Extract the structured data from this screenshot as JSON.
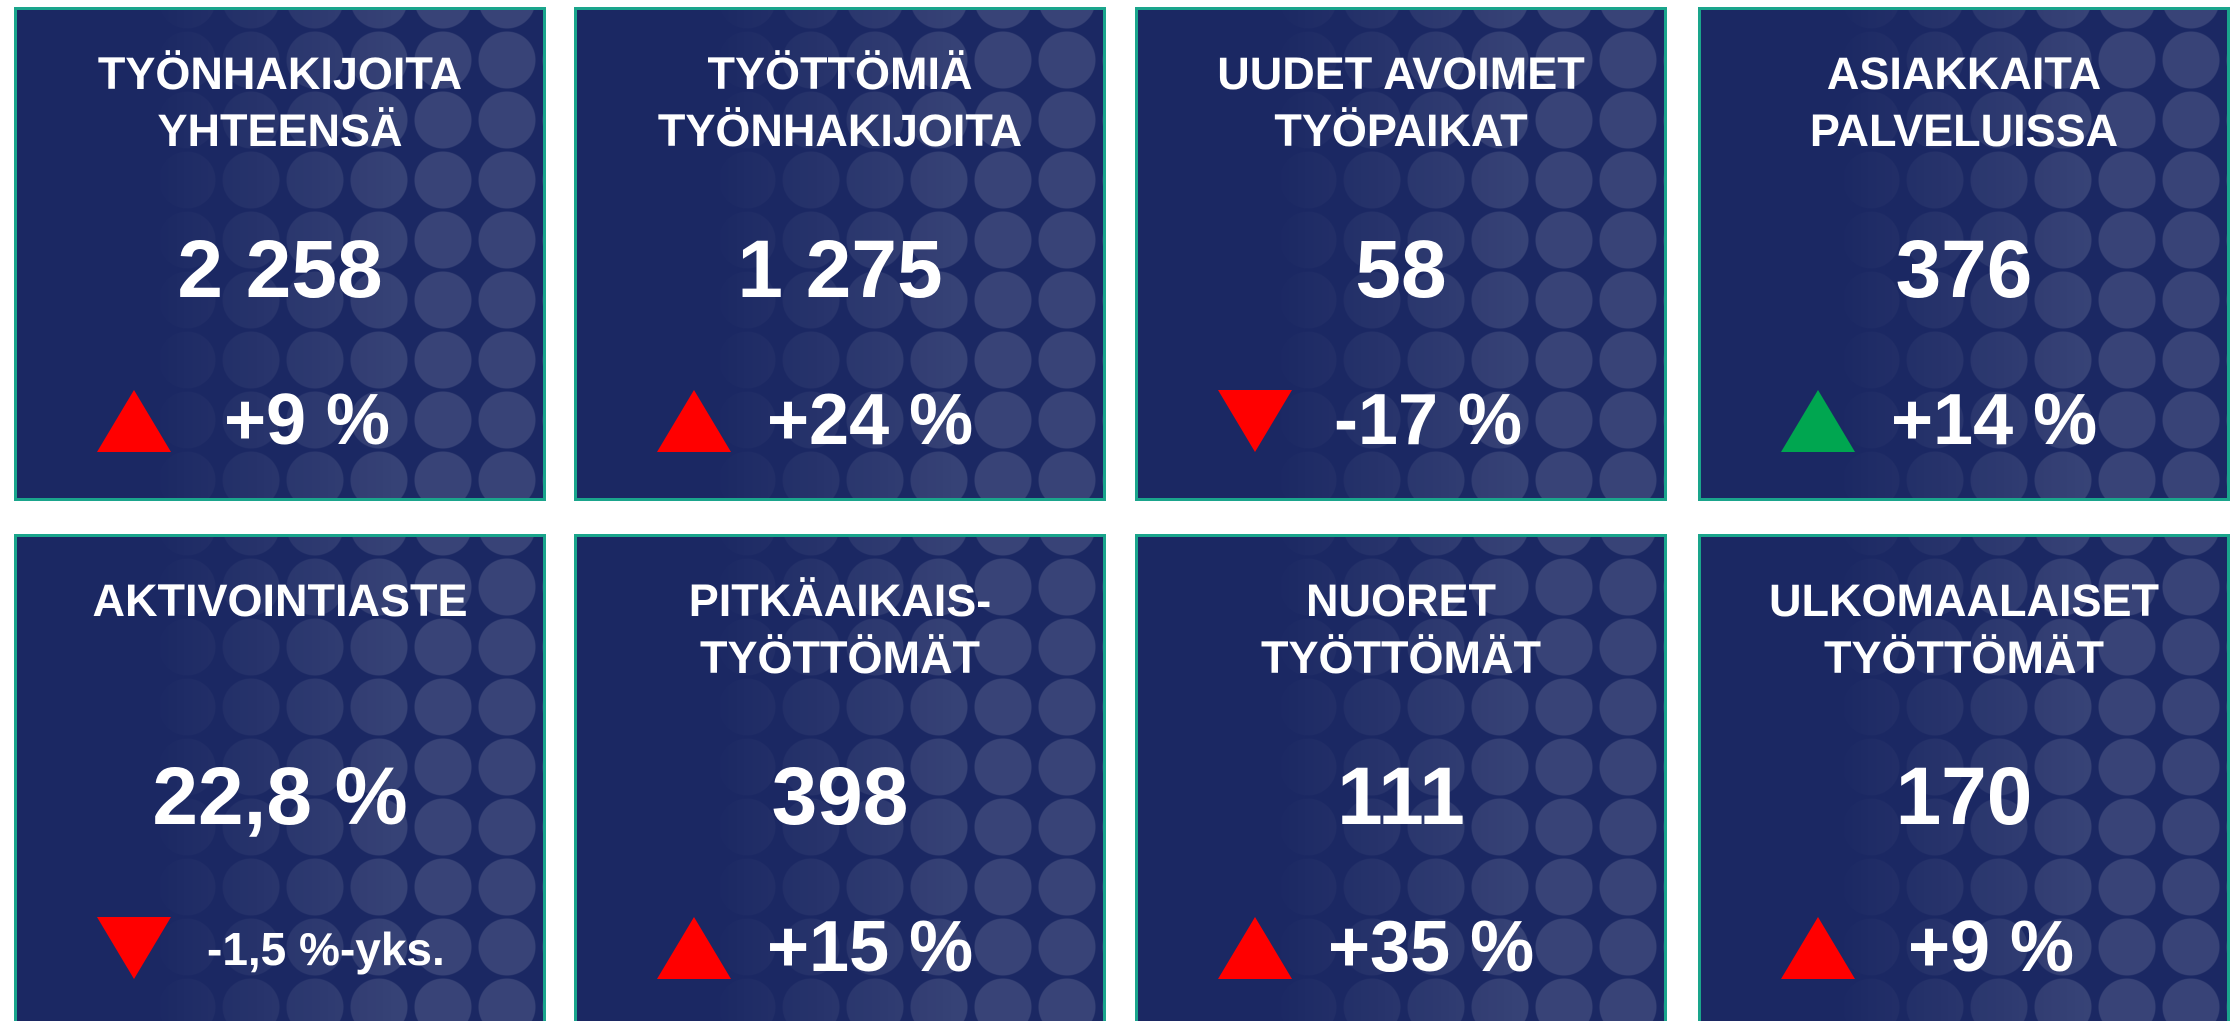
{
  "cards": [
    {
      "title": [
        "TYÖNHAKIJOITA",
        "YHTEENSÄ"
      ],
      "value": "2 258",
      "change": "+9 %",
      "arrow": {
        "direction": "up",
        "color": "#ff0000"
      }
    },
    {
      "title": [
        "TYÖTTÖMIÄ",
        "TYÖNHAKIJOITA"
      ],
      "value": "1 275",
      "change": "+24 %",
      "arrow": {
        "direction": "up",
        "color": "#ff0000"
      }
    },
    {
      "title": [
        "UUDET AVOIMET",
        "TYÖPAIKAT"
      ],
      "value": "58",
      "change": "-17 %",
      "arrow": {
        "direction": "down",
        "color": "#ff0000"
      }
    },
    {
      "title": [
        "ASIAKKAITA",
        "PALVELUISSA"
      ],
      "value": "376",
      "change": "+14 %",
      "arrow": {
        "direction": "up",
        "color": "#00a650"
      }
    },
    {
      "title": [
        "AKTIVOINTIASTE"
      ],
      "value": "22,8 %",
      "change": "-1,5 %-yks.",
      "arrow": {
        "direction": "down",
        "color": "#ff0000"
      }
    },
    {
      "title": [
        "PITKÄAIKAIS-",
        "TYÖTTÖMÄT"
      ],
      "value": "398",
      "change": "+15 %",
      "arrow": {
        "direction": "up",
        "color": "#ff0000"
      }
    },
    {
      "title": [
        "NUORET",
        "TYÖTTÖMÄT"
      ],
      "value": "111",
      "change": "+35 %",
      "arrow": {
        "direction": "up",
        "color": "#ff0000"
      }
    },
    {
      "title": [
        "ULKOMAALAISET",
        "TYÖTTÖMÄT"
      ],
      "value": "170",
      "change": "+9 %",
      "arrow": {
        "direction": "up",
        "color": "#ff0000"
      }
    }
  ]
}
